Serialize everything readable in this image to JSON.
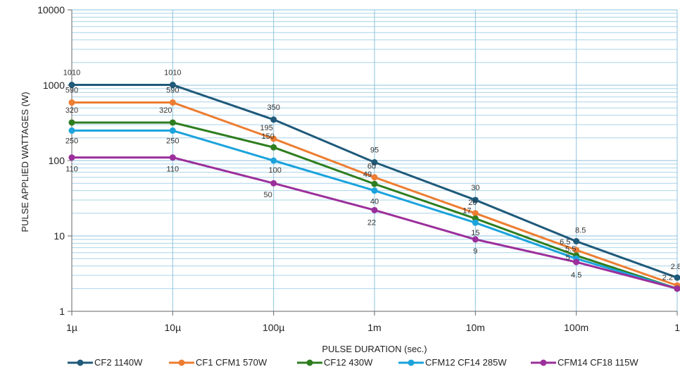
{
  "chart_data": {
    "type": "line",
    "title": "",
    "xlabel": "PULSE DURATION (sec.)",
    "ylabel": "PULSE APPLIED WATTAGES (W)",
    "x_scale": "log",
    "y_scale": "log",
    "x": [
      "1µ",
      "10µ",
      "100µ",
      "1m",
      "10m",
      "100m",
      "1"
    ],
    "x_values_sec": [
      1e-06,
      1e-05,
      0.0001,
      0.001,
      0.01,
      0.1,
      1
    ],
    "y_ticks": [
      "1",
      "10",
      "100",
      "1000",
      "10000"
    ],
    "ylim": [
      1,
      10000
    ],
    "grid": true,
    "legend_position": "bottom",
    "series": [
      {
        "name": "CF2 1140W",
        "color": "#1f5a7a",
        "values": [
          1010,
          1010,
          350,
          95,
          30,
          8.5,
          2.8
        ],
        "labels": [
          "1010",
          "1010",
          "350",
          "95",
          "30",
          "8.5",
          "2.8"
        ]
      },
      {
        "name": "CF1 CFM1 570W",
        "color": "#ed7d31",
        "values": [
          590,
          590,
          195,
          60,
          20,
          6.5,
          2.2
        ],
        "labels": [
          "590",
          "590",
          "195",
          "60",
          "20",
          "6.5",
          "2.2"
        ]
      },
      {
        "name": "CF12 430W",
        "color": "#2e7d1f",
        "values": [
          320,
          320,
          150,
          49,
          17,
          5.5,
          2
        ],
        "labels": [
          "320",
          "320",
          "150",
          "49",
          "17",
          "5.5",
          ""
        ]
      },
      {
        "name": "CFM12 CF14 285W",
        "color": "#1ba3dc",
        "values": [
          250,
          250,
          100,
          40,
          15,
          5,
          2
        ],
        "labels": [
          "250",
          "250",
          "100",
          "40",
          "15",
          "5",
          ""
        ]
      },
      {
        "name": "CFM14 CF18 115W",
        "color": "#9b2f9b",
        "values": [
          110,
          110,
          50,
          22,
          9,
          4.5,
          2
        ],
        "labels": [
          "110",
          "110",
          "50",
          "22",
          "9",
          "4.5",
          ""
        ]
      }
    ]
  }
}
